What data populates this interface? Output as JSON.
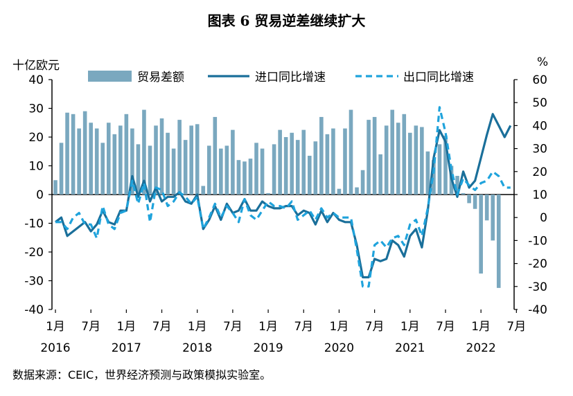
{
  "title": "图表 6 贸易逆差继续扩大",
  "left_unit": "十亿欧元",
  "right_unit": "%",
  "source": "数据来源：CEIC，世界经济预测与政策模拟实验室。",
  "colors": {
    "bar": "#7aa8bf",
    "import_line": "#1a6f9a",
    "export_line": "#1fa3dc"
  },
  "chart_data": {
    "type": "bar",
    "x_start": "2016-01",
    "x_tick_labels": [
      "1月",
      "7月",
      "1月",
      "7月",
      "1月",
      "7月",
      "1月",
      "7月",
      "1月",
      "7月",
      "1月",
      "7月",
      "1月",
      "7月"
    ],
    "year_labels": [
      "2016",
      "2017",
      "2018",
      "2019",
      "2020",
      "2021",
      "2022"
    ],
    "left_axis": {
      "label": "十亿欧元",
      "min": -40,
      "max": 40,
      "ticks": [
        -40,
        -30,
        -20,
        -10,
        0,
        10,
        20,
        30,
        40
      ]
    },
    "right_axis": {
      "label": "%",
      "min": -40,
      "max": 60,
      "ticks": [
        -40,
        -30,
        -20,
        -10,
        0,
        10,
        20,
        30,
        40,
        50,
        60
      ]
    },
    "legend": [
      "贸易差额",
      "进口同比增速",
      "出口同比增速"
    ],
    "series": [
      {
        "name": "贸易差额",
        "axis": "left",
        "kind": "bar",
        "values": [
          5,
          18,
          28.5,
          28,
          23,
          29,
          25,
          23,
          18,
          25,
          21,
          24,
          28,
          23,
          17.5,
          29.5,
          17,
          24,
          26.5,
          21.5,
          16,
          26,
          19,
          24,
          24.5,
          3,
          17,
          27,
          16,
          17,
          22.5,
          12,
          11.5,
          12.5,
          18,
          16,
          0.5,
          17.5,
          22.5,
          20,
          21.5,
          19,
          22.5,
          13.5,
          18.5,
          27,
          21,
          23,
          2,
          23,
          29.5,
          2.5,
          8.5,
          26,
          27,
          14,
          24,
          29.5,
          25,
          28,
          21.5,
          24,
          23.5,
          15,
          12,
          17.5,
          20.5,
          10,
          6.5,
          0.5,
          -3,
          -5,
          -27.5,
          -9,
          -16,
          -32.5
        ]
      },
      {
        "name": "进口同比增速",
        "axis": "right",
        "kind": "line",
        "values": [
          -2,
          0,
          -8,
          -6,
          -4,
          -2,
          -6,
          -3,
          3,
          -2,
          -3,
          3,
          3,
          18,
          9,
          16,
          7,
          13,
          7,
          9,
          9,
          11,
          7,
          6,
          10,
          -5,
          -1,
          5,
          -1,
          6,
          2,
          3,
          8,
          3,
          3,
          7,
          5,
          4,
          4,
          5,
          5,
          1,
          3,
          2,
          -3,
          3,
          -2,
          2,
          -1,
          -2,
          -2,
          -12,
          -26,
          -26,
          -18,
          -19,
          -18,
          -10,
          -12,
          -17,
          -8,
          -5,
          -13,
          3,
          26,
          38,
          33,
          17,
          9,
          20,
          13,
          16,
          26,
          36,
          45,
          40,
          35,
          40
        ]
      },
      {
        "name": "出口同比增速",
        "axis": "right",
        "kind": "line",
        "values": [
          -2,
          -2,
          -5,
          0,
          2,
          -3,
          -3,
          -9,
          5,
          -3,
          -5,
          2,
          3,
          16,
          6,
          15,
          -2,
          13,
          12,
          5,
          7,
          11,
          9,
          6,
          9,
          -5,
          0,
          6,
          0,
          5,
          2,
          -2,
          8,
          1,
          -1,
          3,
          7,
          5,
          5,
          4,
          7,
          -1,
          1,
          3,
          -1,
          4,
          0,
          2,
          0,
          0,
          0,
          -14,
          -30,
          -30,
          -12,
          -10,
          -13,
          -9,
          -8,
          -12,
          -3,
          -1,
          -8,
          4,
          20,
          48,
          37,
          21,
          10,
          17,
          14,
          12,
          15,
          16,
          20,
          18,
          13,
          13
        ]
      }
    ]
  }
}
